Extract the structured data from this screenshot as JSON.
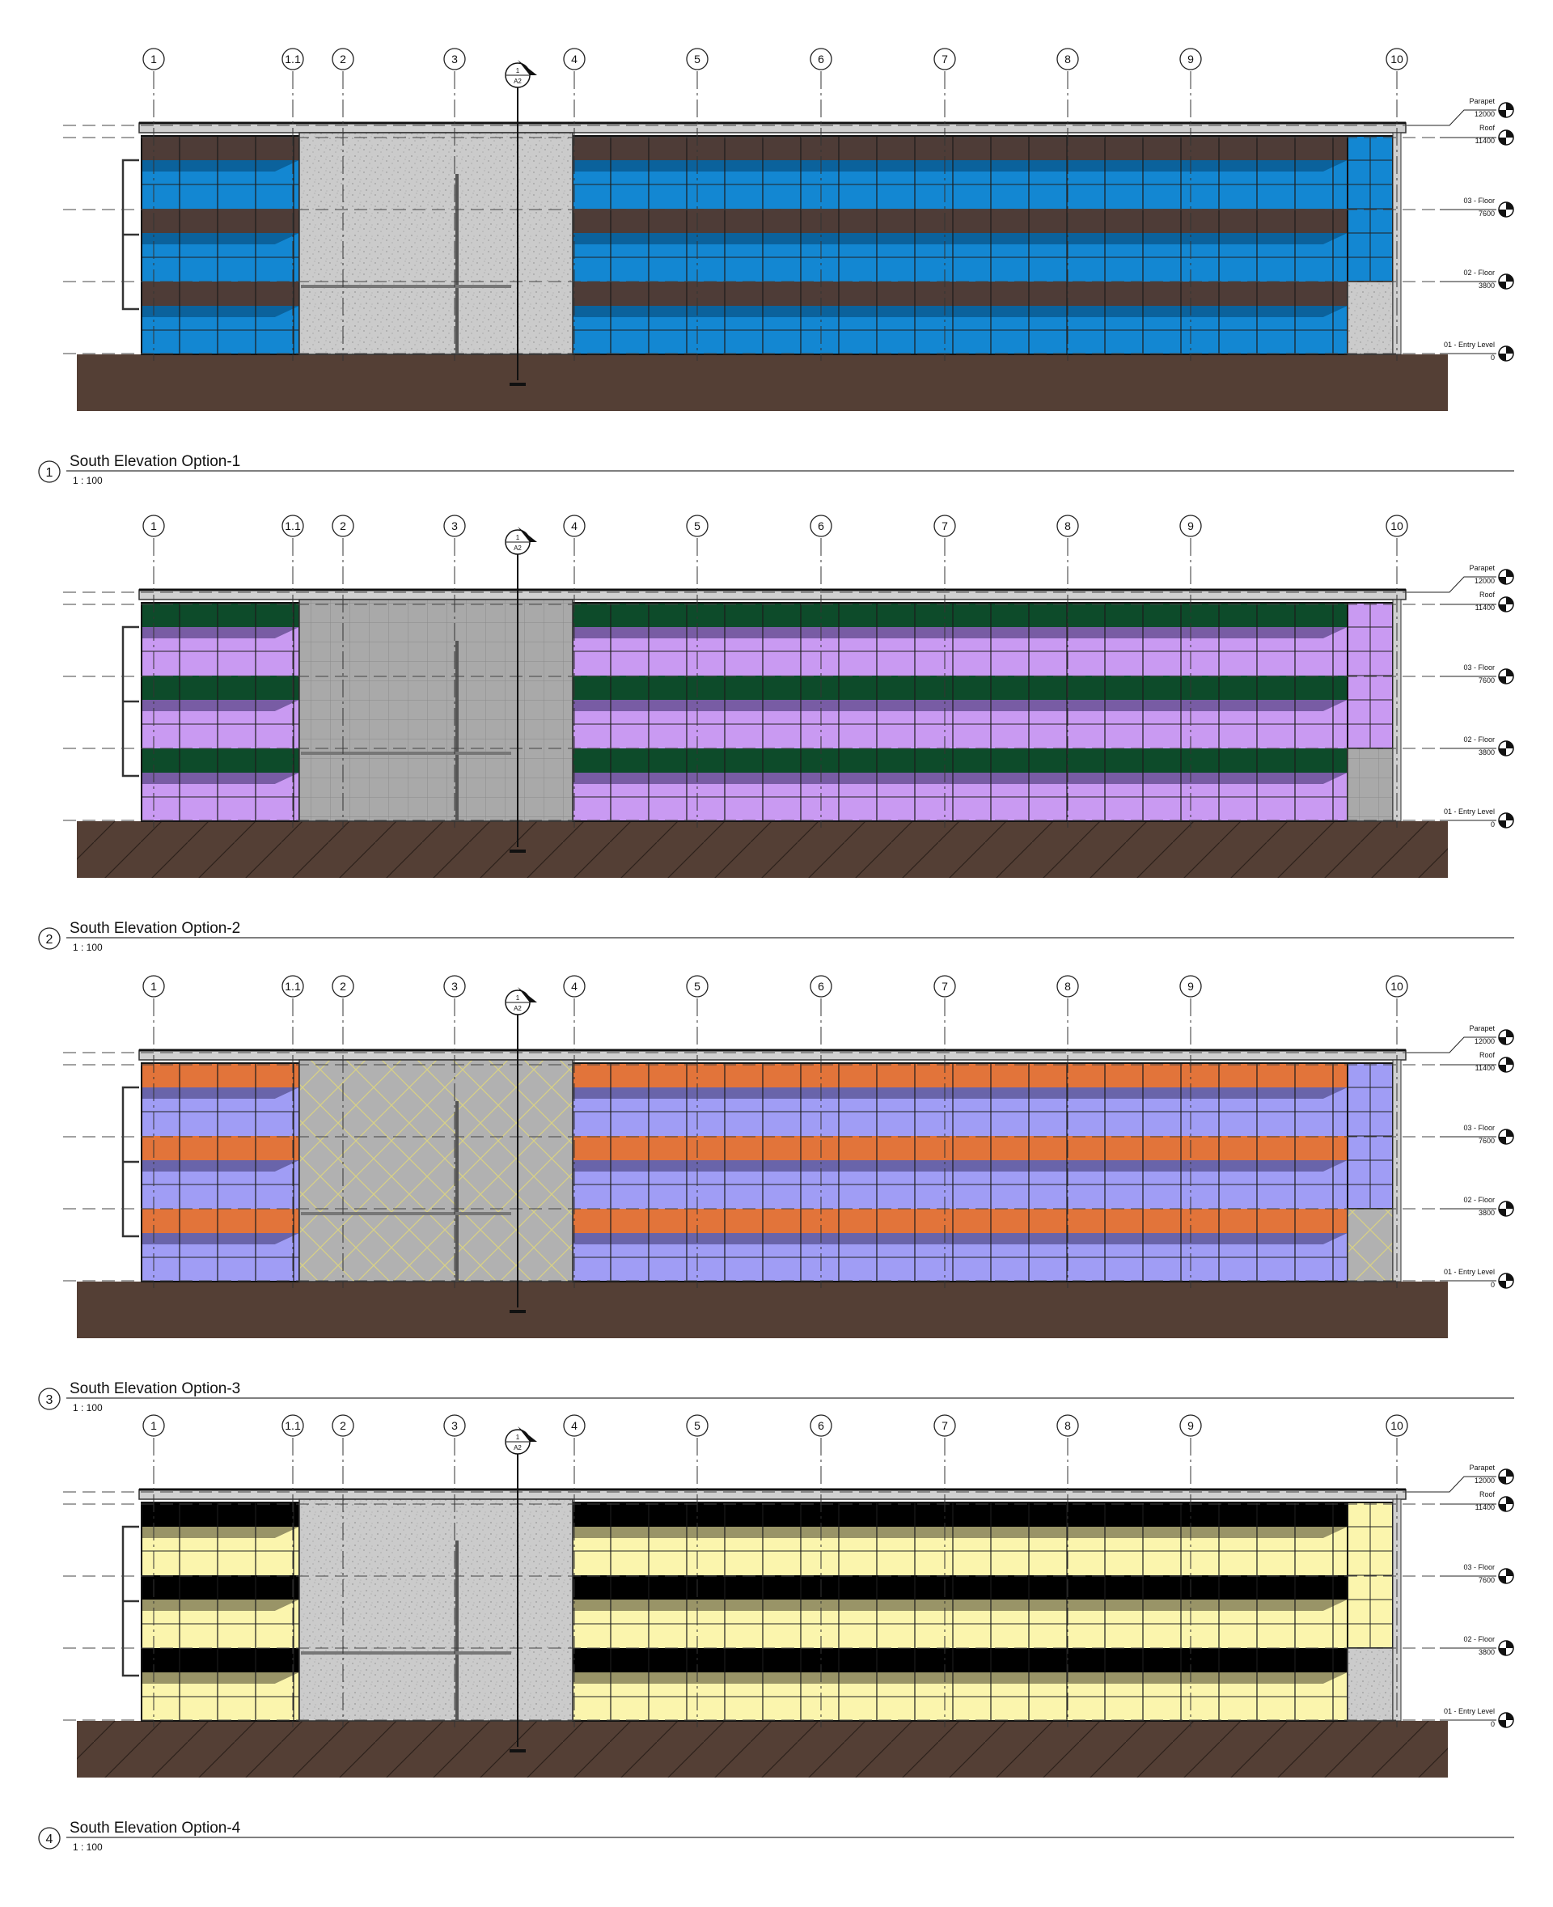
{
  "grid_labels": [
    "1",
    "1.1",
    "2",
    "3",
    "4",
    "5",
    "6",
    "7",
    "8",
    "9",
    "10"
  ],
  "section_marker": {
    "number": "1",
    "sheet": "A2"
  },
  "levels": [
    {
      "name": "Parapet",
      "elevation": "12000"
    },
    {
      "name": "Roof",
      "elevation": "11400"
    },
    {
      "name": "03 - Floor",
      "elevation": "7600"
    },
    {
      "name": "02 - Floor",
      "elevation": "3800"
    },
    {
      "name": "01 - Entry Level",
      "elevation": "0"
    }
  ],
  "views": [
    {
      "number": "1",
      "title": "South Elevation Option-1",
      "scale": "1 : 100",
      "colors": {
        "spandrel": "#4e3c37",
        "glass": "#1387d2",
        "glass_shade": "#0b5c93",
        "panel": "#c9c9c9",
        "panel_pattern": "speckle",
        "ground_hatch": false
      }
    },
    {
      "number": "2",
      "title": "South Elevation Option-2",
      "scale": "1 : 100",
      "colors": {
        "spandrel": "#0d4b2a",
        "glass": "#c99af2",
        "glass_shade": "#6a5196",
        "panel": "#a8a8a8",
        "panel_pattern": "grid",
        "ground_hatch": true
      }
    },
    {
      "number": "3",
      "title": "South Elevation Option-3",
      "scale": "1 : 100",
      "colors": {
        "spandrel": "#e2743a",
        "glass": "#a09df5",
        "glass_shade": "#5f5a9c",
        "panel": "#b0b0b0",
        "panel_pattern": "diagonal",
        "ground_hatch": false
      }
    },
    {
      "number": "4",
      "title": "South Elevation Option-4",
      "scale": "1 : 100",
      "colors": {
        "spandrel": "#000000",
        "glass": "#fbf5ad",
        "glass_shade": "#87825a",
        "panel": "#cfcfcf",
        "panel_pattern": "speckle",
        "ground_hatch": true
      }
    }
  ]
}
